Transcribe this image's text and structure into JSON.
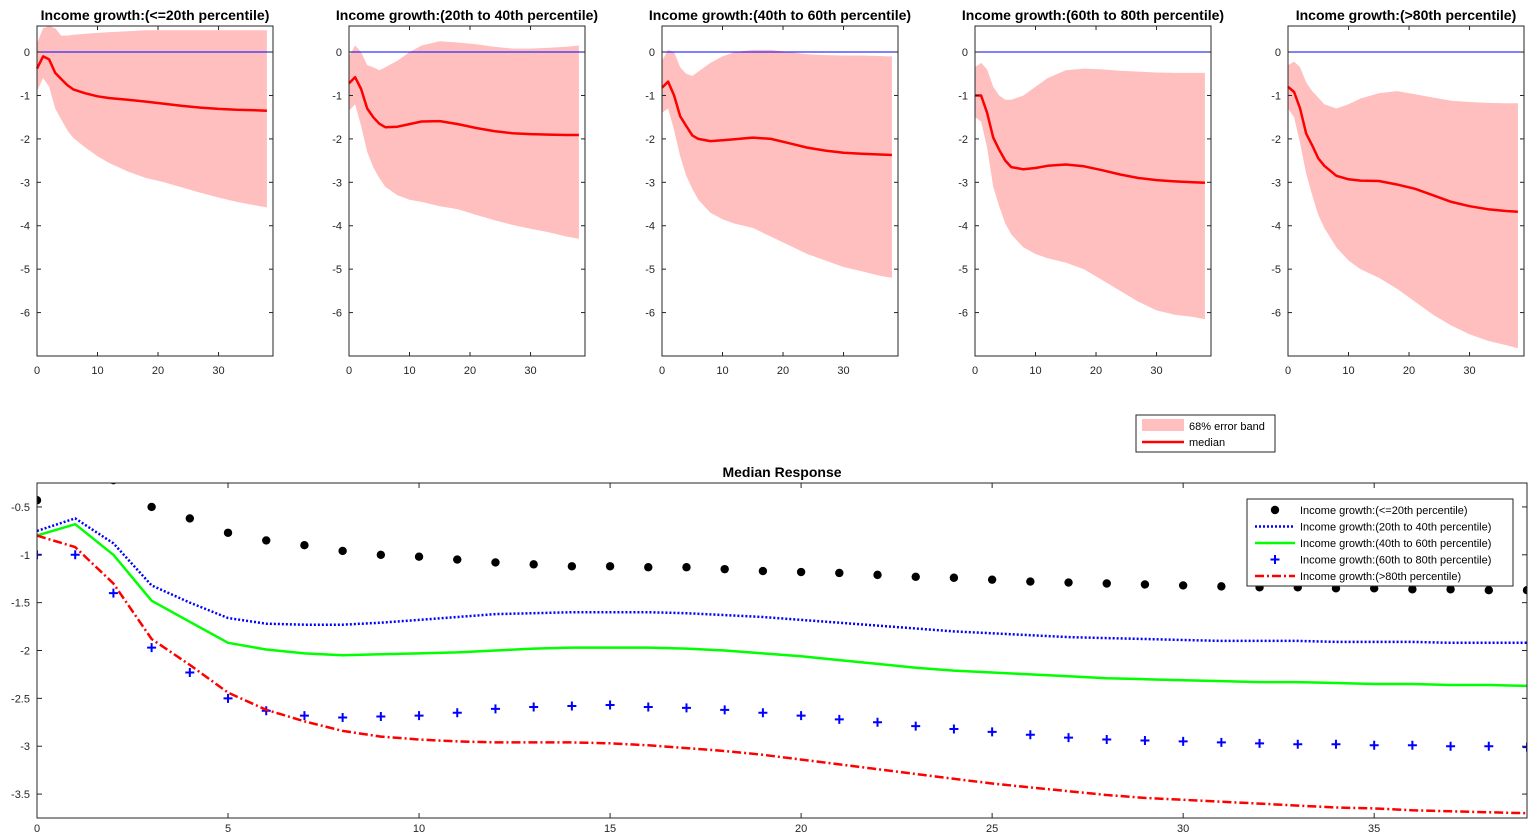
{
  "chart_data": [
    {
      "type": "area",
      "title": "Income growth:(<=20th percentile)",
      "xlim": [
        0,
        39
      ],
      "ylim": [
        -7,
        0.6
      ],
      "xticks": [
        0,
        10,
        20,
        30
      ],
      "yticks": [
        0,
        -1,
        -2,
        -3,
        -4,
        -5,
        -6
      ],
      "zero_line_color": "#0000ff",
      "band_color": "#ffbfbf",
      "median_color": "#ff0000",
      "x": [
        0,
        1,
        2,
        3,
        4,
        5,
        6,
        8,
        10,
        12,
        15,
        18,
        21,
        24,
        27,
        30,
        33,
        36,
        38
      ],
      "median": [
        -0.38,
        -0.1,
        -0.17,
        -0.48,
        -0.62,
        -0.76,
        -0.86,
        -0.95,
        -1.02,
        -1.06,
        -1.1,
        -1.14,
        -1.19,
        -1.24,
        -1.28,
        -1.31,
        -1.33,
        -1.34,
        -1.35
      ],
      "lower": [
        -0.9,
        -0.6,
        -0.8,
        -1.3,
        -1.55,
        -1.8,
        -1.98,
        -2.2,
        -2.4,
        -2.56,
        -2.75,
        -2.9,
        -3.0,
        -3.12,
        -3.24,
        -3.35,
        -3.45,
        -3.53,
        -3.58
      ],
      "upper": [
        0.2,
        0.55,
        0.6,
        0.55,
        0.38,
        0.38,
        0.4,
        0.42,
        0.44,
        0.46,
        0.48,
        0.5,
        0.5,
        0.5,
        0.5,
        0.5,
        0.5,
        0.5,
        0.5
      ]
    },
    {
      "type": "area",
      "title": "Income growth:(20th to 40th percentile)",
      "xlim": [
        0,
        39
      ],
      "ylim": [
        -7,
        0.6
      ],
      "xticks": [
        0,
        10,
        20,
        30
      ],
      "yticks": [
        0,
        -1,
        -2,
        -3,
        -4,
        -5,
        -6
      ],
      "zero_line_color": "#0000ff",
      "band_color": "#ffbfbf",
      "median_color": "#ff0000",
      "x": [
        0,
        1,
        2,
        3,
        4,
        5,
        6,
        8,
        10,
        12,
        15,
        18,
        21,
        24,
        27,
        30,
        33,
        36,
        38
      ],
      "median": [
        -0.72,
        -0.58,
        -0.85,
        -1.3,
        -1.5,
        -1.65,
        -1.73,
        -1.72,
        -1.66,
        -1.6,
        -1.59,
        -1.66,
        -1.75,
        -1.82,
        -1.87,
        -1.89,
        -1.9,
        -1.91,
        -1.91
      ],
      "lower": [
        -1.35,
        -1.2,
        -1.7,
        -2.3,
        -2.65,
        -2.9,
        -3.1,
        -3.3,
        -3.4,
        -3.45,
        -3.55,
        -3.62,
        -3.75,
        -3.87,
        -3.98,
        -4.07,
        -4.15,
        -4.25,
        -4.3
      ],
      "upper": [
        -0.1,
        0.15,
        0.0,
        -0.3,
        -0.35,
        -0.42,
        -0.35,
        -0.2,
        0.0,
        0.15,
        0.25,
        0.22,
        0.18,
        0.12,
        0.08,
        0.08,
        0.1,
        0.12,
        0.15
      ]
    },
    {
      "type": "area",
      "title": "Income growth:(40th to 60th percentile)",
      "xlim": [
        0,
        39
      ],
      "ylim": [
        -7,
        0.6
      ],
      "xticks": [
        0,
        10,
        20,
        30
      ],
      "yticks": [
        0,
        -1,
        -2,
        -3,
        -4,
        -5,
        -6
      ],
      "zero_line_color": "#0000ff",
      "band_color": "#ffbfbf",
      "median_color": "#ff0000",
      "x": [
        0,
        1,
        2,
        3,
        4,
        5,
        6,
        8,
        10,
        12,
        15,
        18,
        21,
        24,
        27,
        30,
        33,
        36,
        38
      ],
      "median": [
        -0.82,
        -0.68,
        -1.0,
        -1.48,
        -1.7,
        -1.92,
        -2.0,
        -2.05,
        -2.03,
        -2.01,
        -1.97,
        -2.0,
        -2.1,
        -2.2,
        -2.27,
        -2.32,
        -2.34,
        -2.36,
        -2.37
      ],
      "lower": [
        -1.4,
        -1.3,
        -1.8,
        -2.4,
        -2.85,
        -3.15,
        -3.4,
        -3.7,
        -3.85,
        -3.95,
        -4.05,
        -4.25,
        -4.45,
        -4.65,
        -4.8,
        -4.95,
        -5.05,
        -5.15,
        -5.2
      ],
      "upper": [
        -0.2,
        0.05,
        0.0,
        -0.35,
        -0.5,
        -0.55,
        -0.45,
        -0.25,
        -0.1,
        0.0,
        0.05,
        0.05,
        0.0,
        -0.05,
        -0.07,
        -0.08,
        -0.08,
        -0.09,
        -0.1
      ]
    },
    {
      "type": "area",
      "title": "Income growth:(60th to 80th percentile)",
      "xlim": [
        0,
        39
      ],
      "ylim": [
        -7,
        0.6
      ],
      "xticks": [
        0,
        10,
        20,
        30
      ],
      "yticks": [
        0,
        -1,
        -2,
        -3,
        -4,
        -5,
        -6
      ],
      "zero_line_color": "#0000ff",
      "band_color": "#ffbfbf",
      "median_color": "#ff0000",
      "x": [
        0,
        1,
        2,
        3,
        4,
        5,
        6,
        8,
        10,
        12,
        15,
        18,
        21,
        24,
        27,
        30,
        33,
        36,
        38
      ],
      "median": [
        -1.0,
        -1.0,
        -1.4,
        -1.97,
        -2.25,
        -2.5,
        -2.65,
        -2.7,
        -2.67,
        -2.62,
        -2.59,
        -2.63,
        -2.72,
        -2.82,
        -2.9,
        -2.95,
        -2.98,
        -3.0,
        -3.01
      ],
      "lower": [
        -1.5,
        -1.6,
        -2.2,
        -3.1,
        -3.55,
        -3.95,
        -4.2,
        -4.5,
        -4.65,
        -4.75,
        -4.85,
        -5.0,
        -5.25,
        -5.5,
        -5.75,
        -5.95,
        -6.05,
        -6.1,
        -6.15
      ],
      "upper": [
        -0.35,
        -0.25,
        -0.4,
        -0.8,
        -1.0,
        -1.1,
        -1.1,
        -1.0,
        -0.8,
        -0.6,
        -0.42,
        -0.38,
        -0.4,
        -0.43,
        -0.45,
        -0.47,
        -0.48,
        -0.48,
        -0.48
      ]
    },
    {
      "type": "area",
      "title": "Income growth:(>80th percentile)",
      "xlim": [
        0,
        39
      ],
      "ylim": [
        -7,
        0.6
      ],
      "xticks": [
        0,
        10,
        20,
        30
      ],
      "yticks": [
        0,
        -1,
        -2,
        -3,
        -4,
        -5,
        -6
      ],
      "zero_line_color": "#0000ff",
      "band_color": "#ffbfbf",
      "median_color": "#ff0000",
      "x": [
        0,
        1,
        2,
        3,
        4,
        5,
        6,
        8,
        10,
        12,
        15,
        18,
        21,
        24,
        27,
        30,
        33,
        36,
        38
      ],
      "median": [
        -0.8,
        -0.92,
        -1.3,
        -1.88,
        -2.15,
        -2.45,
        -2.62,
        -2.85,
        -2.93,
        -2.96,
        -2.97,
        -3.05,
        -3.15,
        -3.3,
        -3.45,
        -3.55,
        -3.62,
        -3.66,
        -3.68
      ],
      "lower": [
        -1.3,
        -1.5,
        -2.1,
        -2.8,
        -3.3,
        -3.75,
        -4.05,
        -4.5,
        -4.8,
        -5.0,
        -5.2,
        -5.45,
        -5.75,
        -6.05,
        -6.3,
        -6.5,
        -6.65,
        -6.75,
        -6.82
      ],
      "upper": [
        -0.3,
        -0.22,
        -0.35,
        -0.7,
        -0.9,
        -1.05,
        -1.2,
        -1.3,
        -1.2,
        -1.07,
        -0.95,
        -0.9,
        -0.97,
        -1.05,
        -1.12,
        -1.15,
        -1.17,
        -1.18,
        -1.18
      ]
    },
    {
      "type": "line",
      "title": "Median Response",
      "xlim": [
        0,
        39
      ],
      "ylim": [
        -3.75,
        -0.25
      ],
      "xticks": [
        0,
        5,
        10,
        15,
        20,
        25,
        30,
        35
      ],
      "yticks": [
        -0.5,
        -1,
        -1.5,
        -2,
        -2.5,
        -3,
        -3.5
      ],
      "ytick_labels": [
        "-0.5",
        "-1",
        "-1.5",
        "-2",
        "-2.5",
        "-3",
        "-3.5"
      ],
      "x": [
        0,
        1,
        2,
        3,
        4,
        5,
        6,
        7,
        8,
        9,
        10,
        11,
        12,
        13,
        14,
        15,
        16,
        17,
        18,
        19,
        20,
        21,
        22,
        23,
        24,
        25,
        26,
        27,
        28,
        29,
        30,
        31,
        32,
        33,
        34,
        35,
        36,
        37,
        38,
        39
      ],
      "series": [
        {
          "name": "Income growth:(<=20th percentile)",
          "style": "dots",
          "color": "#000000",
          "values": [
            -0.43,
            -0.15,
            -0.22,
            -0.5,
            -0.62,
            -0.77,
            -0.85,
            -0.9,
            -0.96,
            -1.0,
            -1.02,
            -1.05,
            -1.08,
            -1.1,
            -1.12,
            -1.12,
            -1.13,
            -1.13,
            -1.15,
            -1.17,
            -1.18,
            -1.19,
            -1.21,
            -1.23,
            -1.24,
            -1.26,
            -1.28,
            -1.29,
            -1.3,
            -1.31,
            -1.32,
            -1.33,
            -1.34,
            -1.34,
            -1.35,
            -1.35,
            -1.36,
            -1.36,
            -1.37,
            -1.37
          ]
        },
        {
          "name": "Income growth:(20th to 40th percentile)",
          "style": "dotted",
          "color": "#0000ff",
          "values": [
            -0.75,
            -0.62,
            -0.88,
            -1.32,
            -1.5,
            -1.66,
            -1.72,
            -1.73,
            -1.73,
            -1.71,
            -1.68,
            -1.65,
            -1.62,
            -1.61,
            -1.6,
            -1.6,
            -1.6,
            -1.61,
            -1.63,
            -1.65,
            -1.68,
            -1.71,
            -1.74,
            -1.77,
            -1.8,
            -1.82,
            -1.84,
            -1.86,
            -1.87,
            -1.88,
            -1.89,
            -1.9,
            -1.9,
            -1.9,
            -1.91,
            -1.91,
            -1.91,
            -1.92,
            -1.92,
            -1.92
          ]
        },
        {
          "name": "Income growth:(40th to 60th percentile)",
          "style": "solid",
          "color": "#00ff00",
          "values": [
            -0.8,
            -0.68,
            -1.0,
            -1.48,
            -1.7,
            -1.92,
            -1.99,
            -2.03,
            -2.05,
            -2.04,
            -2.03,
            -2.02,
            -2.0,
            -1.98,
            -1.97,
            -1.97,
            -1.97,
            -1.98,
            -2.0,
            -2.03,
            -2.06,
            -2.1,
            -2.14,
            -2.18,
            -2.21,
            -2.23,
            -2.25,
            -2.27,
            -2.29,
            -2.3,
            -2.31,
            -2.32,
            -2.33,
            -2.33,
            -2.34,
            -2.35,
            -2.35,
            -2.36,
            -2.36,
            -2.37
          ]
        },
        {
          "name": "Income growth:(60th to 80th percentile)",
          "style": "plus",
          "color": "#0000ff",
          "values": [
            -1.0,
            -1.0,
            -1.4,
            -1.97,
            -2.23,
            -2.5,
            -2.63,
            -2.68,
            -2.7,
            -2.69,
            -2.68,
            -2.65,
            -2.61,
            -2.59,
            -2.58,
            -2.57,
            -2.59,
            -2.6,
            -2.62,
            -2.65,
            -2.68,
            -2.72,
            -2.75,
            -2.79,
            -2.82,
            -2.85,
            -2.88,
            -2.91,
            -2.93,
            -2.94,
            -2.95,
            -2.96,
            -2.97,
            -2.98,
            -2.98,
            -2.99,
            -2.99,
            -3.0,
            -3.0,
            -3.01
          ]
        },
        {
          "name": "Income growth:(>80th percentile)",
          "style": "dashdot",
          "color": "#ff0000",
          "values": [
            -0.8,
            -0.92,
            -1.3,
            -1.88,
            -2.15,
            -2.44,
            -2.62,
            -2.74,
            -2.84,
            -2.9,
            -2.93,
            -2.95,
            -2.96,
            -2.96,
            -2.96,
            -2.97,
            -2.99,
            -3.02,
            -3.05,
            -3.09,
            -3.14,
            -3.19,
            -3.24,
            -3.29,
            -3.34,
            -3.39,
            -3.43,
            -3.47,
            -3.51,
            -3.54,
            -3.56,
            -3.58,
            -3.6,
            -3.62,
            -3.64,
            -3.65,
            -3.67,
            -3.68,
            -3.69,
            -3.7
          ]
        }
      ]
    }
  ],
  "band_legend": {
    "band_label": "68% error band",
    "median_label": "median"
  }
}
